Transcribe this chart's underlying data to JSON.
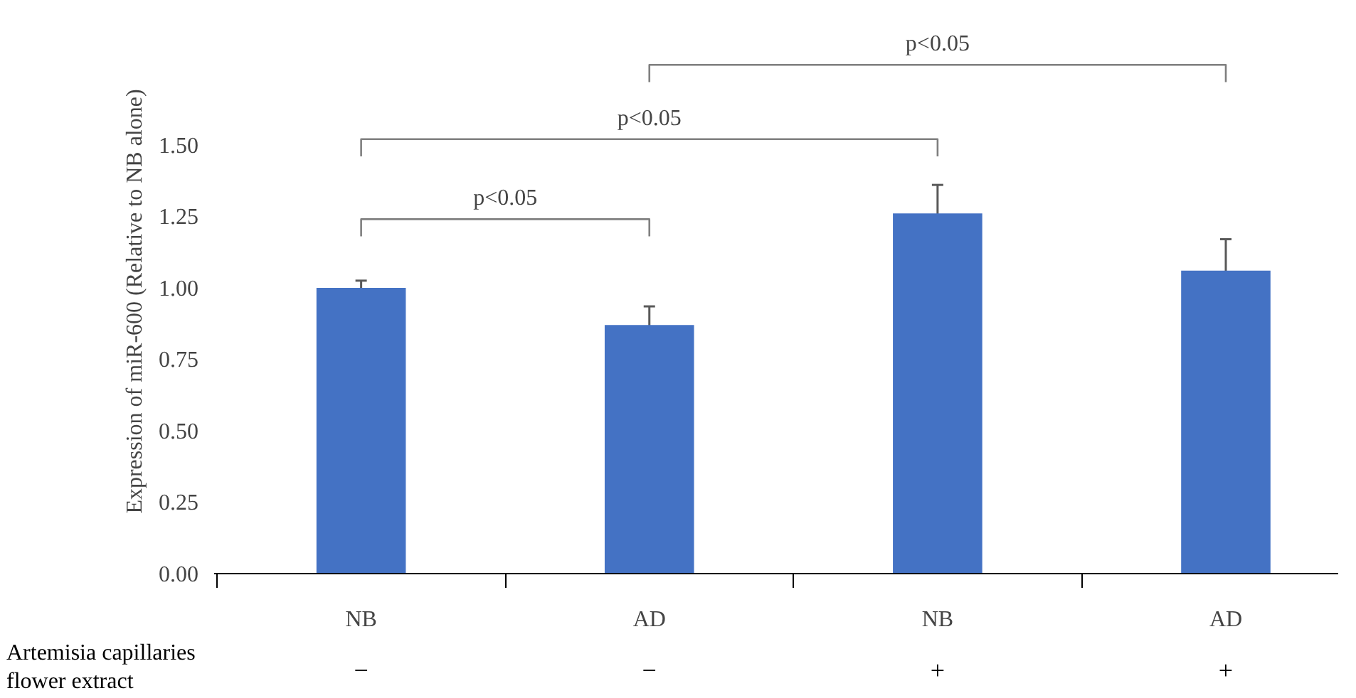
{
  "chart_data": {
    "type": "bar",
    "ylabel": "Expression of miR-600 (Relative to NB alone)",
    "categories": [
      "NB",
      "AD",
      "NB",
      "AD"
    ],
    "values": [
      1.0,
      0.87,
      1.26,
      1.06
    ],
    "errors": [
      0.025,
      0.065,
      0.1,
      0.11
    ],
    "color": "#4472c4",
    "ylim": [
      0,
      1.5
    ],
    "yticks": [
      {
        "value": 0,
        "label": "0.00"
      },
      {
        "value": 0.25,
        "label": "0.25"
      },
      {
        "value": 0.5,
        "label": "0.50"
      },
      {
        "value": 0.75,
        "label": "0.75"
      },
      {
        "value": 1.0,
        "label": "1.00"
      },
      {
        "value": 1.25,
        "label": "1.25"
      },
      {
        "value": 1.5,
        "label": "1.50"
      }
    ],
    "grid": false,
    "annotations": [
      "p<0.05",
      "p<0.05",
      "p<0.05",
      "Artemisia capillaries flower extract",
      "−",
      "−",
      "+",
      "+"
    ]
  }
}
